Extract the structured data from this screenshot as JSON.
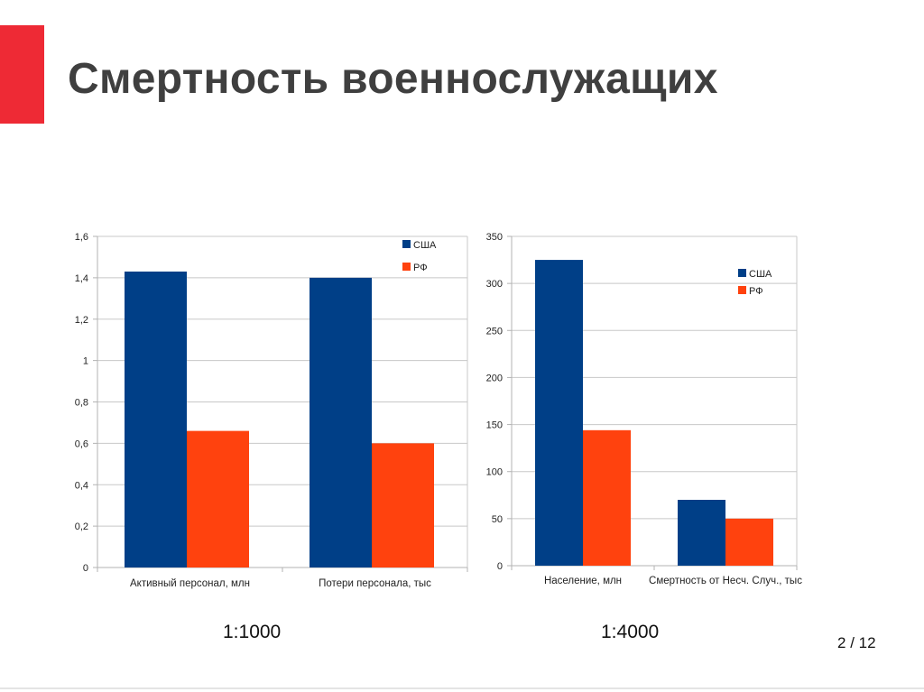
{
  "slide": {
    "title": "Смертность военнослужащих",
    "accent_color": "#ee2a35",
    "page": {
      "current": "2",
      "separator": "/",
      "total": "12"
    },
    "scale_left": "1:1000",
    "scale_right": "1:4000"
  },
  "chart_data": [
    {
      "type": "bar",
      "categories": [
        "Активный персонал, млн",
        "Потери персонала, тыс"
      ],
      "series": [
        {
          "name": "США",
          "values": [
            1.43,
            1.4
          ],
          "color": "#003f87"
        },
        {
          "name": "РФ",
          "values": [
            0.66,
            0.6
          ],
          "color": "#ff420e"
        }
      ],
      "ylim": [
        0,
        1.6
      ],
      "yticks": [
        0,
        0.2,
        0.4,
        0.6,
        0.8,
        1,
        1.2,
        1.4,
        1.6
      ],
      "ytick_labels": [
        "0",
        "0,2",
        "0,4",
        "0,6",
        "0,8",
        "1",
        "1,2",
        "1,4",
        "1,6"
      ],
      "grid": true,
      "legend_position": "top-right"
    },
    {
      "type": "bar",
      "categories": [
        "Население, млн",
        "Смертность от Несч. Случ., тыс"
      ],
      "series": [
        {
          "name": "США",
          "values": [
            325,
            70
          ],
          "color": "#003f87"
        },
        {
          "name": "РФ",
          "values": [
            144,
            50
          ],
          "color": "#ff420e"
        }
      ],
      "ylim": [
        0,
        350
      ],
      "yticks": [
        0,
        50,
        100,
        150,
        200,
        250,
        300,
        350
      ],
      "ytick_labels": [
        "0",
        "50",
        "100",
        "150",
        "200",
        "250",
        "300",
        "350"
      ],
      "grid": true,
      "legend_position": "top-right"
    }
  ]
}
